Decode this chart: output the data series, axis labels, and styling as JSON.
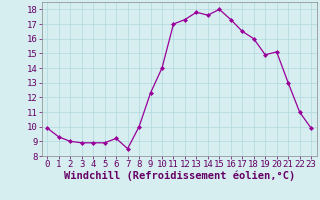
{
  "hours": [
    0,
    1,
    2,
    3,
    4,
    5,
    6,
    7,
    8,
    9,
    10,
    11,
    12,
    13,
    14,
    15,
    16,
    17,
    18,
    19,
    20,
    21,
    22,
    23
  ],
  "values": [
    9.9,
    9.3,
    9.0,
    8.9,
    8.9,
    8.9,
    9.2,
    8.5,
    10.0,
    12.3,
    14.0,
    17.0,
    17.3,
    17.8,
    17.6,
    18.0,
    17.3,
    16.5,
    16.0,
    14.9,
    15.1,
    13.0,
    11.0,
    9.9
  ],
  "line_color": "#990099",
  "marker": "D",
  "marker_size": 2.0,
  "bg_color": "#d6eef0",
  "grid_color": "#b0d8dc",
  "xlabel": "Windchill (Refroidissement éolien,°C)",
  "ylim": [
    8,
    18.5
  ],
  "yticks": [
    8,
    9,
    10,
    11,
    12,
    13,
    14,
    15,
    16,
    17,
    18
  ],
  "xlim": [
    -0.5,
    23.5
  ],
  "xticks": [
    0,
    1,
    2,
    3,
    4,
    5,
    6,
    7,
    8,
    9,
    10,
    11,
    12,
    13,
    14,
    15,
    16,
    17,
    18,
    19,
    20,
    21,
    22,
    23
  ],
  "tick_fontsize": 6.5,
  "xlabel_fontsize": 7.5
}
